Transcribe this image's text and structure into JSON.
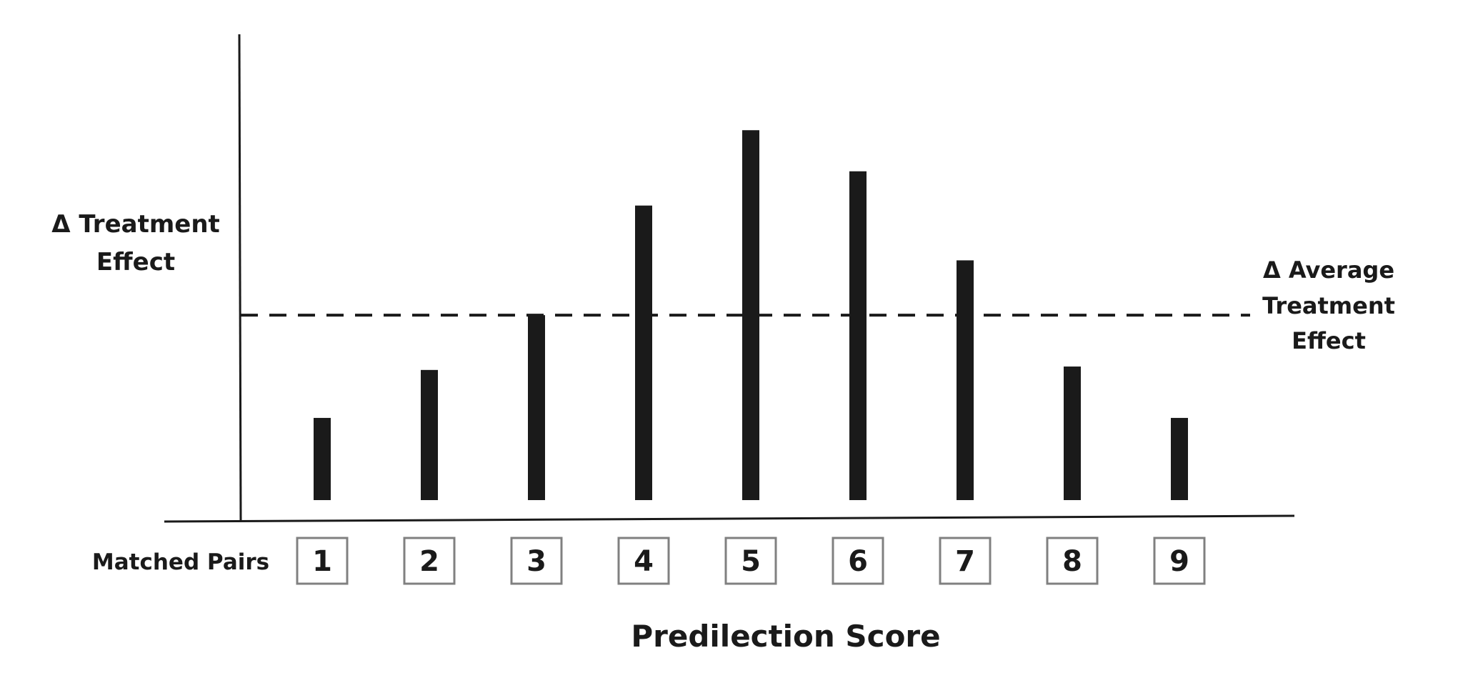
{
  "chart_data": {
    "type": "bar",
    "categories": [
      "1",
      "2",
      "3",
      "4",
      "5",
      "6",
      "7",
      "8",
      "9"
    ],
    "values": [
      1.2,
      1.9,
      2.7,
      4.3,
      5.4,
      4.8,
      3.5,
      1.95,
      1.2
    ],
    "ylim": [
      0,
      6.8
    ],
    "reference_line": {
      "value": 2.7,
      "label_lines": [
        "Δ Average",
        "Treatment",
        "Effect"
      ]
    },
    "ylabel_lines": [
      "Δ Treatment",
      "Effect"
    ],
    "category_axis_label": "Matched Pairs",
    "xlabel": "Predilection Score",
    "grid": false,
    "colors": {
      "bar": "#1a1a1a",
      "axis": "#1a1a1a",
      "box_border": "#808080",
      "text": "#1a1a1a"
    }
  }
}
